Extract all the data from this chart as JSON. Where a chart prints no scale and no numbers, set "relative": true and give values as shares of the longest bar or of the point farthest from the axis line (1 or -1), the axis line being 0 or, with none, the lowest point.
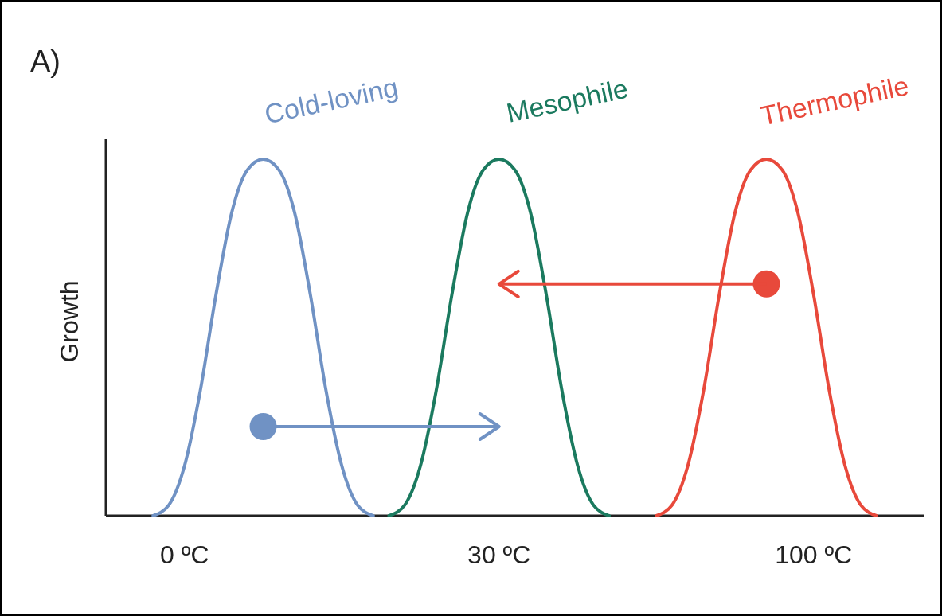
{
  "chart_data": {
    "type": "line",
    "title": "A)",
    "ylabel": "Growth",
    "relative": true,
    "marker": "none",
    "line_style": "solid",
    "categories": [
      null,
      null,
      null,
      null,
      null,
      "0 ºC",
      null,
      null,
      null,
      null,
      null,
      null,
      null,
      null,
      null,
      null,
      null,
      null,
      null,
      null,
      null,
      null,
      null,
      null,
      null,
      "30 ºC",
      null,
      null,
      null,
      null,
      null,
      null,
      null,
      null,
      null,
      null,
      null,
      null,
      null,
      null,
      null,
      null,
      null,
      null,
      null,
      "100 ºC",
      null,
      null,
      null,
      null,
      null,
      null,
      null
    ],
    "series": [
      {
        "name": "Cold-loving",
        "color": "#7092c4",
        "values": [
          null,
          null,
          null,
          0,
          0.03,
          0.14,
          0.35,
          0.62,
          0.85,
          0.97,
          1,
          0.97,
          0.85,
          0.62,
          0.35,
          0.14,
          0.03,
          0,
          null,
          null,
          null,
          null,
          null,
          null,
          null,
          null,
          null,
          null,
          null,
          null,
          null,
          null,
          null,
          null,
          null,
          null,
          null,
          null,
          null,
          null,
          null,
          null,
          null,
          null,
          null,
          null,
          null,
          null,
          null,
          null,
          null,
          null,
          null
        ]
      },
      {
        "name": "Mesophile",
        "color": "#1b7a5f",
        "values": [
          null,
          null,
          null,
          null,
          null,
          null,
          null,
          null,
          null,
          null,
          null,
          null,
          null,
          null,
          null,
          null,
          null,
          null,
          0,
          0.03,
          0.14,
          0.35,
          0.62,
          0.85,
          0.97,
          1,
          0.97,
          0.85,
          0.62,
          0.35,
          0.14,
          0.03,
          0,
          null,
          null,
          null,
          null,
          null,
          null,
          null,
          null,
          null,
          null,
          null,
          null,
          null,
          null,
          null,
          null,
          null,
          null,
          null,
          null
        ]
      },
      {
        "name": "Thermophile",
        "color": "#e8493b",
        "values": [
          null,
          null,
          null,
          null,
          null,
          null,
          null,
          null,
          null,
          null,
          null,
          null,
          null,
          null,
          null,
          null,
          null,
          null,
          null,
          null,
          null,
          null,
          null,
          null,
          null,
          null,
          null,
          null,
          null,
          null,
          null,
          null,
          null,
          null,
          null,
          0,
          0.03,
          0.14,
          0.35,
          0.62,
          0.85,
          0.97,
          1,
          0.97,
          0.85,
          0.62,
          0.35,
          0.14,
          0.03,
          0,
          null,
          null,
          null
        ]
      }
    ]
  }
}
